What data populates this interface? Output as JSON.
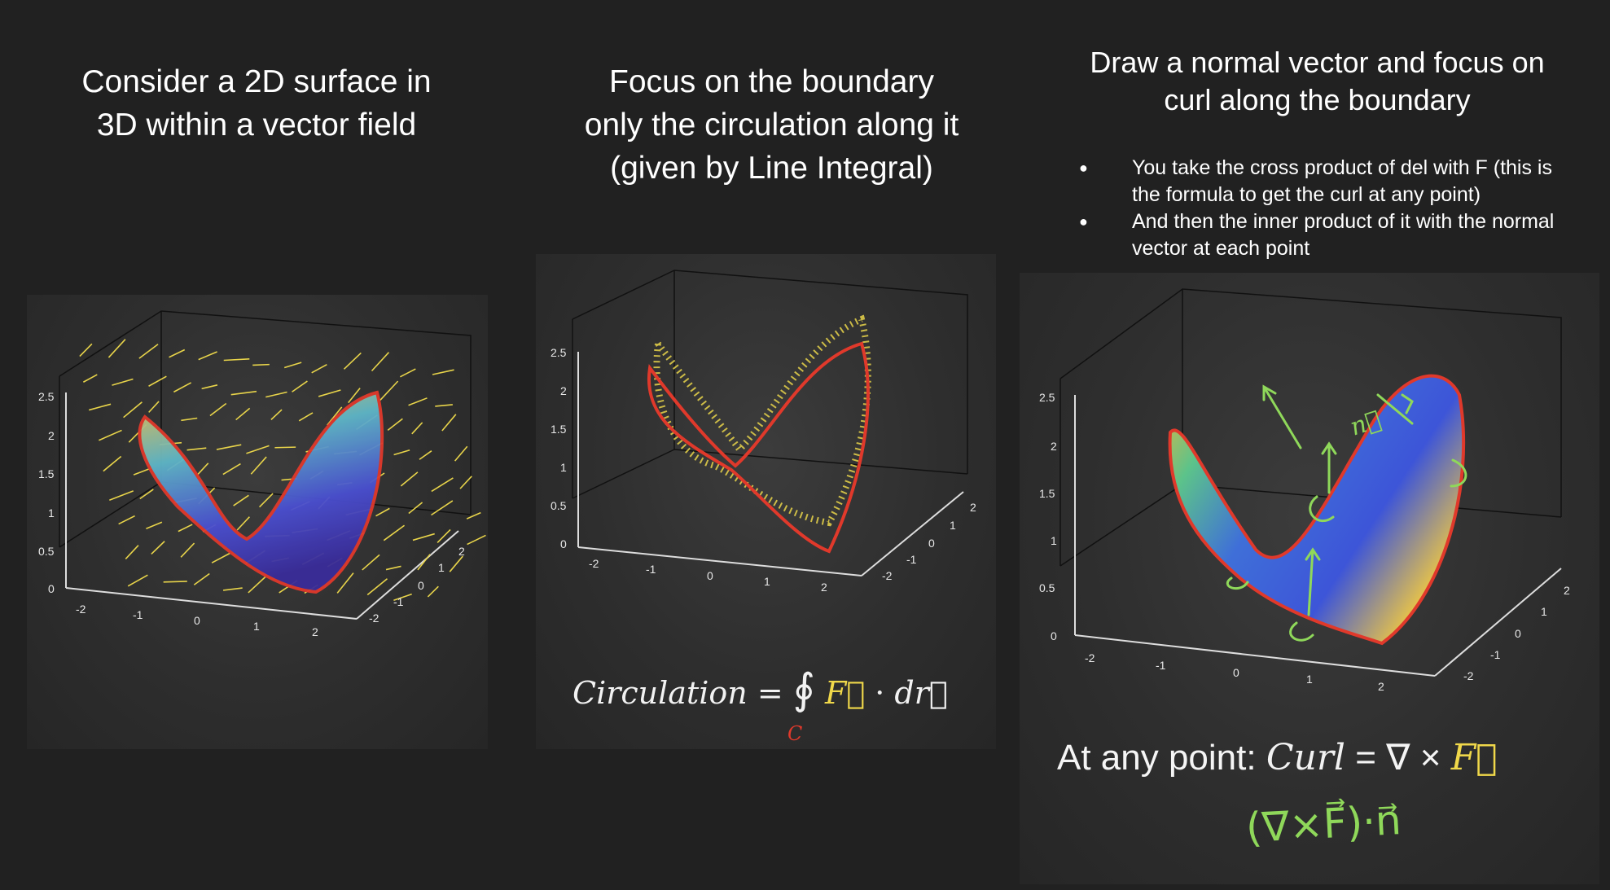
{
  "panel1": {
    "title_lines": [
      "Consider a 2D surface in",
      "3D within a vector field"
    ],
    "ticks": {
      "z": [
        "2.5",
        "2",
        "1.5",
        "1",
        "0.5",
        "0"
      ],
      "x": [
        "-2",
        "-1",
        "0",
        "1",
        "2"
      ],
      "y": [
        "2",
        "1",
        "0",
        "-1",
        "-2"
      ]
    }
  },
  "panel2": {
    "title_lines": [
      "Focus on the boundary",
      "only the circulation along it",
      "(given by Line Integral)"
    ],
    "ticks": {
      "z": [
        "2.5",
        "2",
        "1.5",
        "1",
        "0.5",
        "0"
      ],
      "x": [
        "-2",
        "-1",
        "0",
        "1",
        "2"
      ],
      "y": [
        "2",
        "1",
        "0",
        "-1",
        "-2"
      ]
    },
    "formula": {
      "lhs": "Circulation",
      "eq": "=",
      "integral": "∮",
      "field": "F⃗",
      "dot": "·",
      "dr": "dr⃗",
      "contour": "C"
    }
  },
  "panel3": {
    "title_lines": [
      "Draw a normal vector and focus on",
      "curl along the boundary"
    ],
    "bullets": [
      "You take the cross product of del with F (this is the formula to get the curl at any point)",
      "And then the inner product of it with the normal vector at each point"
    ],
    "ticks": {
      "z": [
        "2.5",
        "2",
        "1.5",
        "1",
        "0.5",
        "0"
      ],
      "x": [
        "-2",
        "-1",
        "0",
        "1",
        "2"
      ],
      "y": [
        "2",
        "1",
        "0",
        "-1",
        "-2"
      ]
    },
    "formula": {
      "prefix": "At any point:",
      "lhs": "Curl",
      "eq": "=",
      "op": "∇ ×",
      "field": "F⃗"
    },
    "handwritten": "(∇×F⃗)·n⃗",
    "normal_label": "n⃗"
  },
  "colors": {
    "background": "#212121",
    "boundary": "#e0392b",
    "arrows": "#e8d44a",
    "handwriting": "#8fd85a"
  }
}
